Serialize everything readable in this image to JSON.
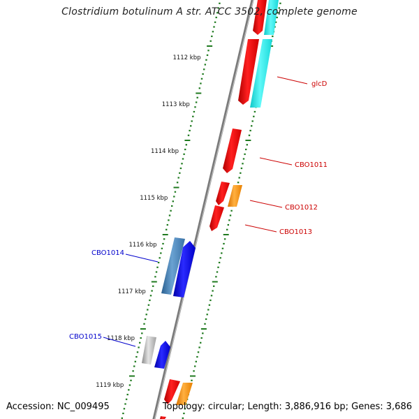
{
  "title": "Clostridium botulinum A str. ATCC 3502, complete genome",
  "accession": "Accession: NC_009495",
  "topology": "Topology: circular; Length: 3,886,916 bp; Genes: 3,686",
  "colors": {
    "backbone": "#888888",
    "ticks": "#1f7a1f",
    "red_gene": "#ff1a1a",
    "cyan_gene": "#22f0f0",
    "orange_gene": "#ff9a1a",
    "blue_gene": "#1a1aff",
    "steel_gene": "#4a86b8",
    "grey_gene": "#bdbdbd",
    "label_forward": "#cc0000",
    "label_reverse": "#0000cc"
  },
  "scale": {
    "unit": "kbp",
    "labels": [
      "1112 kbp",
      "1113 kbp",
      "1114 kbp",
      "1115 kbp",
      "1116 kbp",
      "1117 kbp",
      "1118 kbp",
      "1119 kbp"
    ]
  },
  "gene_labels": {
    "forward": [
      "glcD",
      "CBO1011",
      "CBO1012",
      "CBO1013"
    ],
    "reverse": [
      "CBO1014",
      "CBO1015"
    ]
  }
}
